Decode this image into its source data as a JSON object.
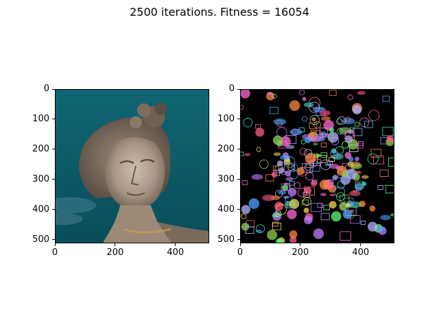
{
  "suptitle": "2500 iterations. Fitness = 16054",
  "chart_data": [
    {
      "type": "image",
      "description_role": "target image",
      "xlim": [
        0,
        512
      ],
      "ylim": [
        512,
        0
      ],
      "xticks": [
        0,
        200,
        400
      ],
      "yticks": [
        0,
        100,
        200,
        300,
        400,
        500
      ],
      "xtick_labels": [
        "0",
        "200",
        "400"
      ],
      "ytick_labels": [
        "0",
        "100",
        "200",
        "300",
        "400",
        "500"
      ]
    },
    {
      "type": "image",
      "description_role": "evolved emoji collage",
      "xlim": [
        0,
        512
      ],
      "ylim": [
        512,
        0
      ],
      "xticks": [
        0,
        200,
        400
      ],
      "yticks": [
        0,
        100,
        200,
        300,
        400,
        500
      ],
      "xtick_labels": [
        "0",
        "200",
        "400"
      ],
      "ytick_labels": [
        "0",
        "100",
        "200",
        "300",
        "400",
        "500"
      ]
    }
  ],
  "colors": {
    "sky_top": "#0e5f6e",
    "sky_bottom": "#0a4f5c",
    "statue_light": "#c9b9a6",
    "statue_mid": "#8f7d6e",
    "statue_dark": "#4d4036",
    "collage_bg": "#000000"
  }
}
